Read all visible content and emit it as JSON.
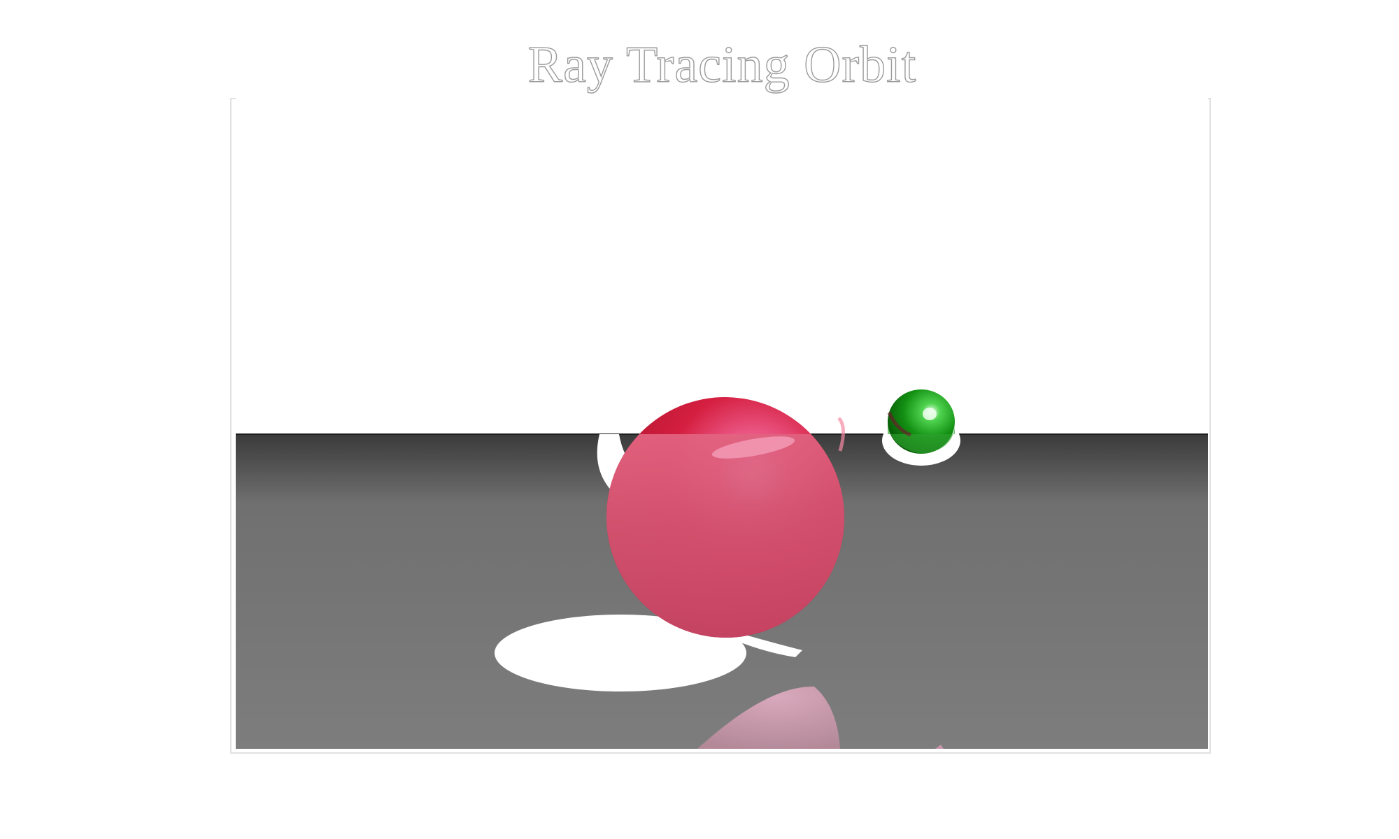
{
  "app": {
    "title": "Ray Tracing Orbit"
  },
  "scene": {
    "sky_color": "#ffffff",
    "floor_color_near": "#7e7e7e",
    "floor_color_far": "#3c3c3c",
    "objects": [
      {
        "name": "large-sphere",
        "color": "#d0203f",
        "highlight": "#ffd6ff"
      },
      {
        "name": "small-sphere",
        "color": "#128a12",
        "highlight": "#d8ffd8"
      }
    ]
  }
}
